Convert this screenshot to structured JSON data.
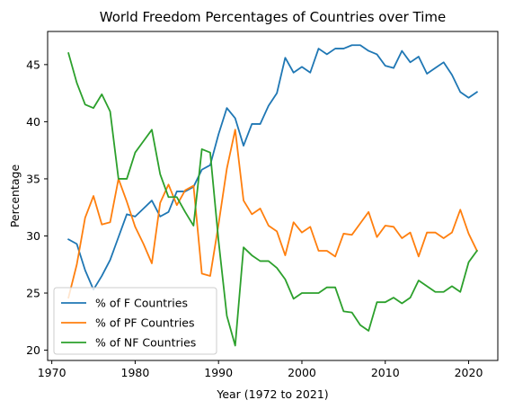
{
  "chart_data": {
    "type": "line",
    "title": "World Freedom Percentages of Countries over Time",
    "xlabel": "Year (1972 to 2021)",
    "ylabel": "Percentage",
    "xlim": [
      1969.5,
      2023.5
    ],
    "ylim": [
      19.1,
      47.9
    ],
    "xticks": [
      1970,
      1980,
      1990,
      2000,
      2010,
      2020
    ],
    "yticks": [
      20,
      25,
      30,
      35,
      40,
      45
    ],
    "grid": false,
    "legend_position": "lower-left",
    "x": [
      1972,
      1973,
      1974,
      1975,
      1976,
      1977,
      1978,
      1979,
      1980,
      1981,
      1982,
      1983,
      1984,
      1985,
      1986,
      1987,
      1988,
      1989,
      1990,
      1991,
      1992,
      1993,
      1994,
      1995,
      1996,
      1997,
      1998,
      1999,
      2000,
      2001,
      2002,
      2003,
      2004,
      2005,
      2006,
      2007,
      2008,
      2009,
      2010,
      2011,
      2012,
      2013,
      2014,
      2015,
      2016,
      2017,
      2018,
      2019,
      2020,
      2021
    ],
    "series": [
      {
        "name": "% of F Countries",
        "color": "#1f77b4",
        "values": [
          29.7,
          29.3,
          27.0,
          25.3,
          26.5,
          27.9,
          29.9,
          31.9,
          31.7,
          32.4,
          33.1,
          31.7,
          32.1,
          33.9,
          33.9,
          34.3,
          35.8,
          36.2,
          38.9,
          41.2,
          40.3,
          37.9,
          39.8,
          39.8,
          41.4,
          42.5,
          45.6,
          44.3,
          44.8,
          44.3,
          46.4,
          45.9,
          46.4,
          46.4,
          46.7,
          46.7,
          46.2,
          45.9,
          44.9,
          44.7,
          46.2,
          45.2,
          45.7,
          44.2,
          44.7,
          45.2,
          44.1,
          42.6,
          42.1,
          42.6
        ]
      },
      {
        "name": "% of PF Countries",
        "color": "#ff7f0e",
        "values": [
          24.6,
          27.5,
          31.6,
          33.5,
          31.0,
          31.2,
          35.0,
          33.0,
          30.8,
          29.3,
          27.6,
          32.9,
          34.5,
          32.7,
          34.0,
          34.4,
          26.7,
          26.5,
          31.0,
          35.9,
          39.3,
          33.1,
          31.9,
          32.4,
          30.9,
          30.4,
          28.3,
          31.2,
          30.3,
          30.8,
          28.7,
          28.7,
          28.2,
          30.2,
          30.1,
          31.1,
          32.1,
          29.9,
          30.9,
          30.8,
          29.8,
          30.3,
          28.2,
          30.3,
          30.3,
          29.8,
          30.3,
          32.3,
          30.2,
          28.7
        ]
      },
      {
        "name": "% of NF Countries",
        "color": "#2ca02c",
        "values": [
          46.0,
          43.4,
          41.5,
          41.2,
          42.4,
          40.9,
          35.0,
          35.0,
          37.3,
          38.3,
          39.3,
          35.4,
          33.4,
          33.4,
          32.1,
          30.9,
          37.6,
          37.3,
          29.6,
          23.0,
          20.4,
          29.0,
          28.3,
          27.8,
          27.8,
          27.2,
          26.2,
          24.5,
          25.0,
          25.0,
          25.0,
          25.5,
          25.5,
          23.4,
          23.3,
          22.2,
          21.7,
          24.2,
          24.2,
          24.6,
          24.1,
          24.6,
          26.1,
          25.6,
          25.1,
          25.1,
          25.6,
          25.1,
          27.7,
          28.7
        ]
      }
    ]
  }
}
